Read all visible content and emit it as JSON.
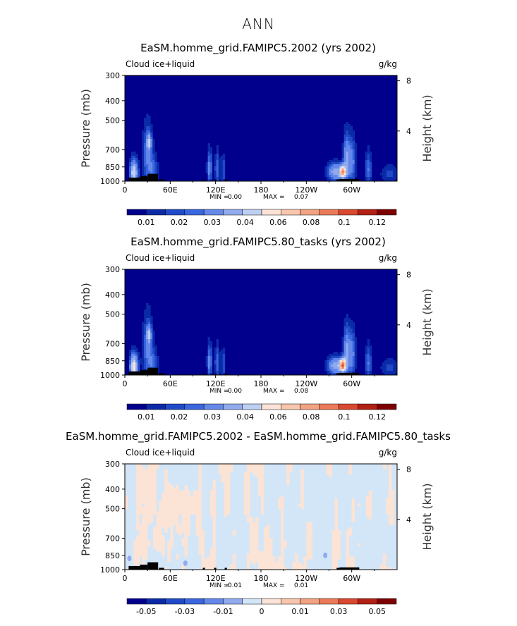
{
  "page": {
    "title": "ANN"
  },
  "palettes": {
    "abs": [
      "#00008d",
      "#0b2aa8",
      "#1f4bc8",
      "#3a66df",
      "#6489ea",
      "#91abee",
      "#bed0f2",
      "#fbe3d5",
      "#f7c6ac",
      "#f3a382",
      "#ec7a58",
      "#d9482f",
      "#b32014",
      "#7f0000"
    ],
    "diff": [
      "#00008d",
      "#0b2aa8",
      "#1f4bc8",
      "#3a66df",
      "#6489ea",
      "#91abee",
      "#d3e6f8",
      "#fbe3d5",
      "#f7c6ac",
      "#f3a382",
      "#ec7a58",
      "#d9482f",
      "#b32014",
      "#7f0000"
    ]
  },
  "colors": {
    "land": "#000000"
  },
  "chart_data": [
    {
      "type": "heatmap",
      "title": "EaSM.homme_grid.FAMIPC5.2002 (yrs 2002)",
      "variable_label": "Cloud ice+liquid",
      "units": "g/kg",
      "ylabel": "Pressure (mb)",
      "ylabel_right": "Height (km)",
      "pressure_ticks": [
        "300",
        "400",
        "500",
        "700",
        "850",
        "1000"
      ],
      "height_ticks": [
        "8",
        "4"
      ],
      "xticks": [
        "0",
        "60E",
        "120E",
        "180",
        "120W",
        "60W"
      ],
      "min_label": "MIN =",
      "min_value": "0.00",
      "max_label": "MAX =",
      "max_value": "0.07",
      "colorbar_labels": [
        "0.01",
        "0.02",
        "0.03",
        "0.04",
        "0.06",
        "0.08",
        "0.1",
        "0.12"
      ],
      "palette": "abs",
      "blobs": [
        {
          "lon": 12,
          "p": 910,
          "wlon": 5,
          "wp": 130,
          "v": 0.05
        },
        {
          "lon": 30,
          "p": 760,
          "wlon": 7,
          "wp": 250,
          "v": 0.02
        },
        {
          "lon": 32,
          "p": 640,
          "wlon": 3,
          "wp": 60,
          "v": 0.035
        },
        {
          "lon": 38,
          "p": 890,
          "wlon": 6,
          "wp": 150,
          "v": 0.015
        },
        {
          "lon": 112,
          "p": 860,
          "wlon": 3,
          "wp": 170,
          "v": 0.025
        },
        {
          "lon": 122,
          "p": 870,
          "wlon": 3,
          "wp": 170,
          "v": 0.02
        },
        {
          "lon": 130,
          "p": 880,
          "wlon": 3,
          "wp": 150,
          "v": 0.015
        },
        {
          "lon": 278,
          "p": 900,
          "wlon": 10,
          "wp": 90,
          "v": 0.035
        },
        {
          "lon": 288,
          "p": 900,
          "wlon": 4,
          "wp": 60,
          "v": 0.07
        },
        {
          "lon": 293,
          "p": 780,
          "wlon": 4,
          "wp": 200,
          "v": 0.03
        },
        {
          "lon": 300,
          "p": 800,
          "wlon": 5,
          "wp": 200,
          "v": 0.025
        },
        {
          "lon": 322,
          "p": 870,
          "wlon": 4,
          "wp": 170,
          "v": 0.02
        },
        {
          "lon": 350,
          "p": 920,
          "wlon": 12,
          "wp": 100,
          "v": 0.012
        }
      ],
      "land": [
        [
          5,
          20,
          960
        ],
        [
          20,
          30,
          945
        ],
        [
          30,
          44,
          920
        ],
        [
          45,
          52,
          980
        ],
        [
          103,
          106,
          980
        ],
        [
          118,
          121,
          980
        ],
        [
          132,
          135,
          980
        ],
        [
          280,
          284,
          980
        ],
        [
          284,
          310,
          975
        ]
      ]
    },
    {
      "type": "heatmap",
      "title": "EaSM.homme_grid.FAMIPC5.80_tasks (yrs 2002)",
      "variable_label": "Cloud ice+liquid",
      "units": "g/kg",
      "ylabel": "Pressure (mb)",
      "ylabel_right": "Height (km)",
      "pressure_ticks": [
        "300",
        "400",
        "500",
        "700",
        "850",
        "1000"
      ],
      "height_ticks": [
        "8",
        "4"
      ],
      "xticks": [
        "0",
        "60E",
        "120E",
        "180",
        "120W",
        "60W"
      ],
      "min_label": "MIN =",
      "min_value": "0.00",
      "max_label": "MAX =",
      "max_value": "0.08",
      "colorbar_labels": [
        "0.01",
        "0.02",
        "0.03",
        "0.04",
        "0.06",
        "0.08",
        "0.1",
        "0.12"
      ],
      "palette": "abs",
      "blobs": [
        {
          "lon": 12,
          "p": 910,
          "wlon": 5,
          "wp": 130,
          "v": 0.055
        },
        {
          "lon": 30,
          "p": 750,
          "wlon": 7,
          "wp": 260,
          "v": 0.02
        },
        {
          "lon": 32,
          "p": 630,
          "wlon": 3,
          "wp": 60,
          "v": 0.035
        },
        {
          "lon": 38,
          "p": 890,
          "wlon": 6,
          "wp": 150,
          "v": 0.015
        },
        {
          "lon": 112,
          "p": 860,
          "wlon": 3,
          "wp": 170,
          "v": 0.025
        },
        {
          "lon": 122,
          "p": 870,
          "wlon": 3,
          "wp": 170,
          "v": 0.02
        },
        {
          "lon": 130,
          "p": 880,
          "wlon": 3,
          "wp": 150,
          "v": 0.015
        },
        {
          "lon": 278,
          "p": 900,
          "wlon": 10,
          "wp": 90,
          "v": 0.035
        },
        {
          "lon": 288,
          "p": 895,
          "wlon": 4,
          "wp": 60,
          "v": 0.08
        },
        {
          "lon": 293,
          "p": 770,
          "wlon": 4,
          "wp": 200,
          "v": 0.03
        },
        {
          "lon": 300,
          "p": 790,
          "wlon": 5,
          "wp": 200,
          "v": 0.025
        },
        {
          "lon": 322,
          "p": 870,
          "wlon": 4,
          "wp": 170,
          "v": 0.02
        },
        {
          "lon": 350,
          "p": 920,
          "wlon": 12,
          "wp": 100,
          "v": 0.012
        }
      ],
      "land": [
        [
          5,
          20,
          960
        ],
        [
          20,
          30,
          945
        ],
        [
          30,
          44,
          920
        ],
        [
          45,
          52,
          980
        ],
        [
          103,
          106,
          980
        ],
        [
          118,
          121,
          980
        ],
        [
          132,
          135,
          980
        ],
        [
          280,
          284,
          980
        ],
        [
          284,
          310,
          975
        ]
      ]
    },
    {
      "type": "heatmap",
      "title": "EaSM.homme_grid.FAMIPC5.2002 - EaSM.homme_grid.FAMIPC5.80_tasks",
      "variable_label": "Cloud ice+liquid",
      "units": "g/kg",
      "ylabel": "Pressure (mb)",
      "ylabel_right": "Height (km)",
      "pressure_ticks": [
        "300",
        "400",
        "500",
        "700",
        "850",
        "1000"
      ],
      "height_ticks": [
        "8",
        "4"
      ],
      "xticks": [
        "0",
        "60E",
        "120E",
        "180",
        "120W",
        "60W"
      ],
      "min_label": "MIN =",
      "min_value": "-0.01",
      "max_label": "MAX =",
      "max_value": "0.01",
      "colorbar_labels": [
        "-0.05",
        "-0.03",
        "-0.01",
        "0",
        "0.01",
        "0.03",
        "0.05"
      ],
      "palette": "diff",
      "diff_field": true,
      "land": [
        [
          5,
          20,
          960
        ],
        [
          20,
          30,
          945
        ],
        [
          30,
          44,
          920
        ],
        [
          45,
          52,
          980
        ],
        [
          103,
          106,
          980
        ],
        [
          118,
          121,
          980
        ],
        [
          132,
          135,
          980
        ],
        [
          280,
          284,
          980
        ],
        [
          284,
          310,
          975
        ]
      ]
    }
  ]
}
